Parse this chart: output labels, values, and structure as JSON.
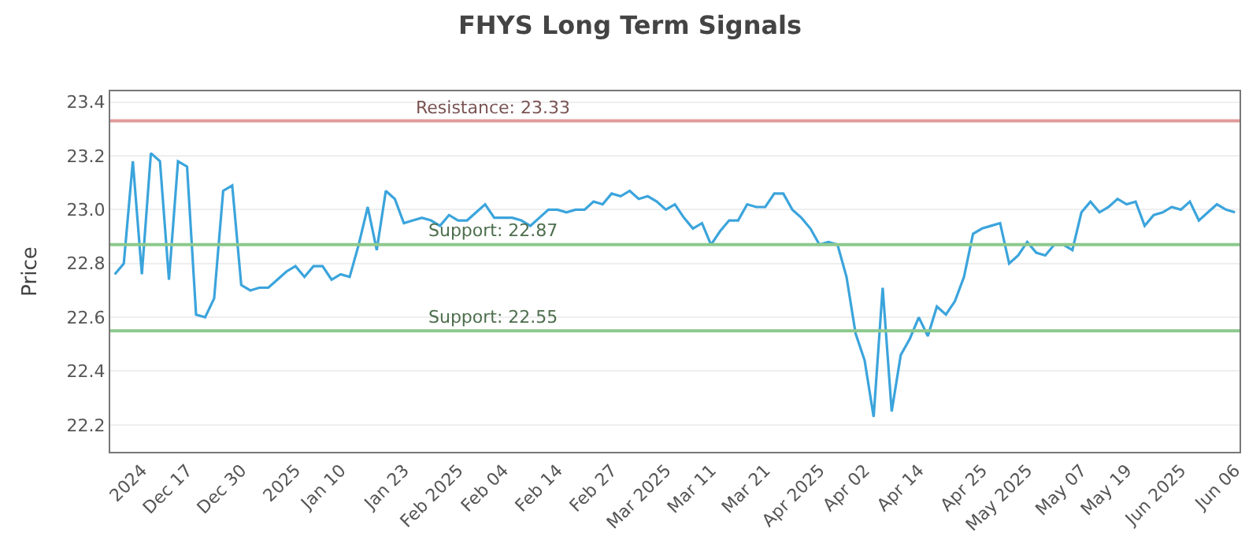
{
  "chart_data": {
    "type": "line",
    "title": "FHYS Long Term Signals",
    "ylabel": "Price",
    "categories": [
      null,
      null,
      null,
      "2024",
      null,
      null,
      null,
      null,
      "Dec 17",
      null,
      null,
      null,
      null,
      null,
      "Dec 30",
      null,
      null,
      null,
      null,
      null,
      "2025",
      null,
      null,
      null,
      null,
      "Jan 10",
      null,
      null,
      null,
      null,
      null,
      null,
      "Jan 23",
      null,
      null,
      null,
      null,
      null,
      "Feb 2025",
      null,
      null,
      null,
      null,
      "Feb 04",
      null,
      null,
      null,
      null,
      null,
      "Feb 14",
      null,
      null,
      null,
      null,
      null,
      "Feb 27",
      null,
      null,
      null,
      null,
      null,
      "Mar 2025",
      null,
      null,
      null,
      null,
      "Mar 11",
      null,
      null,
      null,
      null,
      null,
      "Mar 21",
      null,
      null,
      null,
      null,
      null,
      "Apr 2025",
      null,
      null,
      null,
      null,
      "Apr 02",
      null,
      null,
      null,
      null,
      null,
      "Apr 14",
      null,
      null,
      null,
      null,
      null,
      null,
      "Apr 25",
      null,
      null,
      null,
      null,
      "May 2025",
      null,
      null,
      null,
      null,
      null,
      "May 07",
      null,
      null,
      null,
      null,
      "May 19",
      null,
      null,
      null,
      null,
      null,
      "Jun 2025",
      null,
      null,
      null,
      null,
      null,
      "Jun 06"
    ],
    "series": [
      {
        "color": "#3ba4dc",
        "values": [
          22.76,
          22.8,
          23.18,
          22.76,
          23.21,
          23.18,
          22.74,
          23.18,
          23.16,
          22.61,
          22.6,
          22.67,
          23.07,
          23.09,
          22.72,
          22.7,
          22.71,
          22.71,
          22.74,
          22.77,
          22.79,
          22.75,
          22.79,
          22.79,
          22.74,
          22.76,
          22.75,
          22.87,
          23.01,
          22.85,
          23.07,
          23.04,
          22.95,
          22.96,
          22.97,
          22.96,
          22.94,
          22.98,
          22.96,
          22.96,
          22.99,
          23.02,
          22.97,
          22.97,
          22.97,
          22.96,
          22.94,
          22.97,
          23.0,
          23.0,
          22.99,
          23.0,
          23.0,
          23.03,
          23.02,
          23.06,
          23.05,
          23.07,
          23.04,
          23.05,
          23.03,
          23.0,
          23.02,
          22.97,
          22.93,
          22.95,
          22.87,
          22.92,
          22.96,
          22.96,
          23.02,
          23.01,
          23.01,
          23.06,
          23.06,
          23.0,
          22.97,
          22.93,
          22.87,
          22.88,
          22.87,
          22.75,
          22.54,
          22.44,
          22.23,
          22.71,
          22.25,
          22.46,
          22.52,
          22.6,
          22.53,
          22.64,
          22.61,
          22.66,
          22.75,
          22.91,
          22.93,
          22.94,
          22.95,
          22.8,
          22.83,
          22.88,
          22.84,
          22.83,
          22.87,
          22.87,
          22.85,
          22.99,
          23.03,
          22.99,
          23.01,
          23.04,
          23.02,
          23.03,
          22.94,
          22.98,
          22.99,
          23.01,
          23.0,
          23.03,
          22.96,
          22.99,
          23.02,
          23.0,
          22.99
        ]
      }
    ],
    "ylim": [
      22.1,
      23.44
    ],
    "yticks": [
      {
        "value": 22.2,
        "label": "22.2"
      },
      {
        "value": 22.4,
        "label": "22.4"
      },
      {
        "value": 22.6,
        "label": "22.6"
      },
      {
        "value": 22.8,
        "label": "22.8"
      },
      {
        "value": 23.0,
        "label": "23.0"
      },
      {
        "value": 23.2,
        "label": "23.2"
      },
      {
        "value": 23.4,
        "label": "23.4"
      }
    ],
    "ref_lines": [
      {
        "axis": "y",
        "value": 23.33,
        "label": "Resistance: 23.33",
        "color": "#e09a9a"
      },
      {
        "axis": "y",
        "value": 22.87,
        "label": "Support: 22.87",
        "color": "#8cc98c"
      },
      {
        "axis": "y",
        "value": 22.55,
        "label": "Support: 22.55",
        "color": "#8cc98c"
      }
    ],
    "grid": "y",
    "marker": "none",
    "line_style": "solid"
  }
}
